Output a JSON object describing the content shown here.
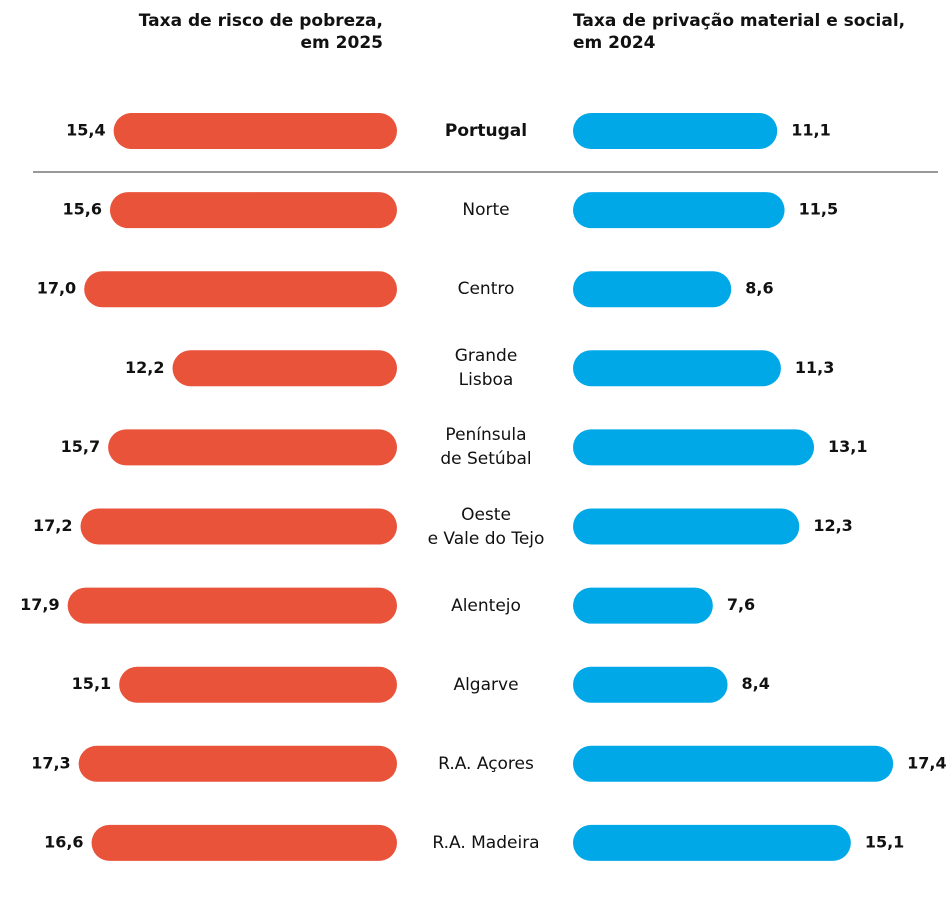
{
  "chart_data": {
    "type": "butterfly",
    "titles": [
      "Taxa de risco de pobreza,\nem 2025",
      "Taxa de privação material e social,\nem 2024"
    ],
    "categories": [
      "Portugal",
      "Norte",
      "Centro",
      "Grande\nLisboa",
      "Península\nde Setúbal",
      "Oeste\ne Vale do Tejo",
      "Alentejo",
      "Algarve",
      "R.A. Açores",
      "R.A. Madeira"
    ],
    "series": [
      {
        "name": "Taxa de risco de pobreza, em 2025",
        "color": "#e8533a",
        "values": [
          15.4,
          15.6,
          17.0,
          12.2,
          15.7,
          17.2,
          17.9,
          15.1,
          17.3,
          16.6
        ],
        "value_labels": [
          "15,4",
          "15,6",
          "17,0",
          "12,2",
          "15,7",
          "17,2",
          "17,9",
          "15,1",
          "17,3",
          "16,6"
        ]
      },
      {
        "name": "Taxa de privação material e social, em 2024",
        "color": "#00a8e8",
        "values": [
          11.1,
          11.5,
          8.6,
          11.3,
          13.1,
          12.3,
          7.6,
          8.4,
          17.4,
          15.1
        ],
        "value_labels": [
          "11,1",
          "11,5",
          "8,6",
          "11,3",
          "13,1",
          "12,3",
          "7,6",
          "8,4",
          "17,4",
          "15,1"
        ]
      }
    ]
  }
}
